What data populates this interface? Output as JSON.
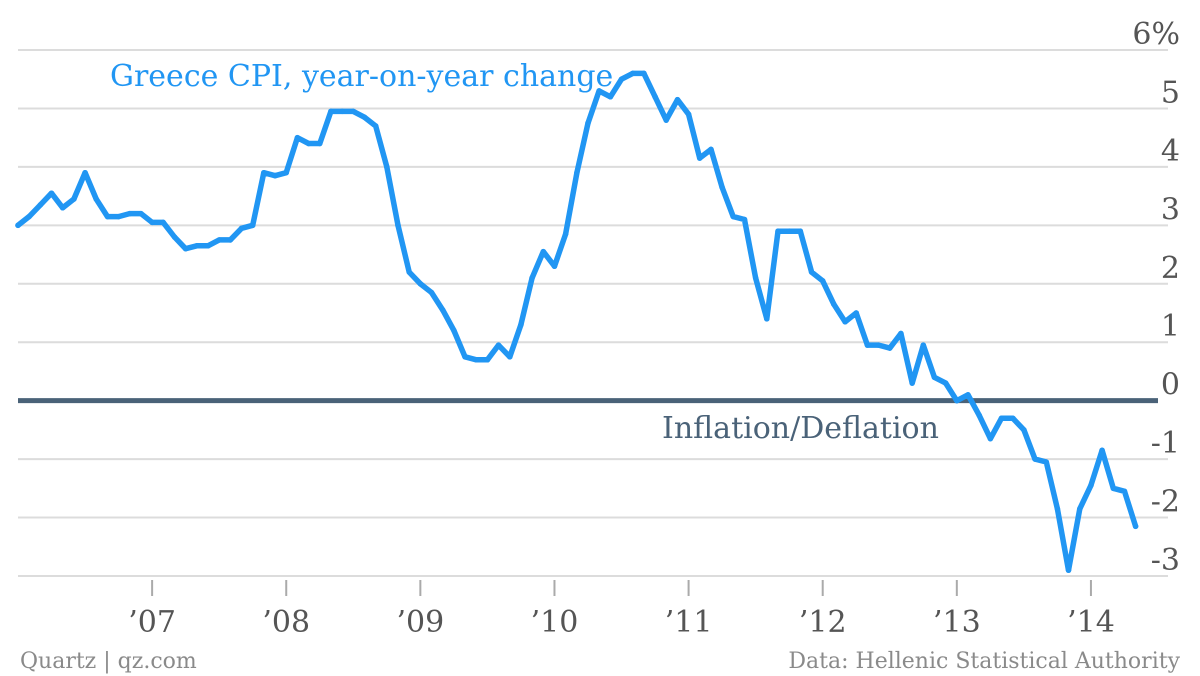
{
  "footer": {
    "source": "Data: Hellenic Statistical Authority",
    "brand": "Quartz | qz.com"
  },
  "colors": {
    "series": "#2196f3",
    "zero_line": "#4a6278",
    "grid": "#dcdcdc",
    "text": "#555555"
  },
  "chart_data": {
    "type": "line",
    "title": "",
    "xlabel": "",
    "ylabel": "",
    "ylim": [
      -3.4,
      6
    ],
    "yticks": [
      -3,
      -2,
      -1,
      0,
      1,
      2,
      3,
      4,
      5,
      6
    ],
    "ytick_labels": [
      "-3",
      "-2",
      "-1",
      "0",
      "1",
      "2",
      "3",
      "4",
      "5",
      "6%"
    ],
    "xlim": [
      2006.0,
      2014.5
    ],
    "xticks": [
      2007,
      2008,
      2009,
      2010,
      2011,
      2012,
      2013,
      2014
    ],
    "xtick_labels": [
      "’07",
      "’08",
      "’09",
      "’10",
      "’11",
      "’12",
      "’13",
      "’14"
    ],
    "grid": true,
    "series": [
      {
        "name": "Greece CPI, year-on-year change",
        "x": [
          2006.0,
          2006.083,
          2006.167,
          2006.25,
          2006.333,
          2006.417,
          2006.5,
          2006.583,
          2006.667,
          2006.75,
          2006.833,
          2006.917,
          2007.0,
          2007.083,
          2007.167,
          2007.25,
          2007.333,
          2007.417,
          2007.5,
          2007.583,
          2007.667,
          2007.75,
          2007.833,
          2007.917,
          2008.0,
          2008.083,
          2008.167,
          2008.25,
          2008.333,
          2008.417,
          2008.5,
          2008.583,
          2008.667,
          2008.75,
          2008.833,
          2008.917,
          2009.0,
          2009.083,
          2009.167,
          2009.25,
          2009.333,
          2009.417,
          2009.5,
          2009.583,
          2009.667,
          2009.75,
          2009.833,
          2009.917,
          2010.0,
          2010.083,
          2010.167,
          2010.25,
          2010.333,
          2010.417,
          2010.5,
          2010.583,
          2010.667,
          2010.75,
          2010.833,
          2010.917,
          2011.0,
          2011.083,
          2011.167,
          2011.25,
          2011.333,
          2011.417,
          2011.5,
          2011.583,
          2011.667,
          2011.75,
          2011.833,
          2011.917,
          2012.0,
          2012.083,
          2012.167,
          2012.25,
          2012.333,
          2012.417,
          2012.5,
          2012.583,
          2012.667,
          2012.75,
          2012.833,
          2012.917,
          2013.0,
          2013.083,
          2013.167,
          2013.25,
          2013.333,
          2013.417,
          2013.5,
          2013.583,
          2013.667,
          2013.75,
          2013.833,
          2013.917,
          2014.0,
          2014.083,
          2014.167,
          2014.25,
          2014.333
        ],
        "values": [
          3.0,
          3.15,
          3.35,
          3.55,
          3.3,
          3.45,
          3.9,
          3.45,
          3.15,
          3.15,
          3.2,
          3.2,
          3.05,
          3.05,
          2.8,
          2.6,
          2.65,
          2.65,
          2.75,
          2.75,
          2.95,
          3.0,
          3.9,
          3.85,
          3.9,
          4.5,
          4.4,
          4.4,
          4.95,
          4.95,
          4.95,
          4.85,
          4.7,
          4.0,
          3.0,
          2.2,
          2.0,
          1.85,
          1.55,
          1.2,
          0.75,
          0.7,
          0.7,
          0.95,
          0.75,
          1.3,
          2.1,
          2.55,
          2.3,
          2.85,
          3.9,
          4.75,
          5.3,
          5.2,
          5.5,
          5.6,
          5.6,
          5.2,
          4.8,
          5.15,
          4.9,
          4.15,
          4.3,
          3.65,
          3.15,
          3.1,
          2.1,
          1.4,
          2.9,
          2.9,
          2.9,
          2.2,
          2.05,
          1.65,
          1.35,
          1.5,
          0.95,
          0.95,
          0.9,
          1.15,
          0.3,
          0.95,
          0.4,
          0.3,
          0.0,
          0.1,
          -0.25,
          -0.65,
          -0.3,
          -0.3,
          -0.5,
          -1.0,
          -1.05,
          -1.85,
          -2.9,
          -1.85,
          -1.45,
          -0.85,
          -1.5,
          -1.55,
          -2.15
        ]
      }
    ],
    "annotations": [
      {
        "text": "Greece CPI, year-on-year change",
        "kind": "series_label"
      },
      {
        "text": "Inflation/Deflation",
        "kind": "zero_line_label"
      }
    ]
  }
}
